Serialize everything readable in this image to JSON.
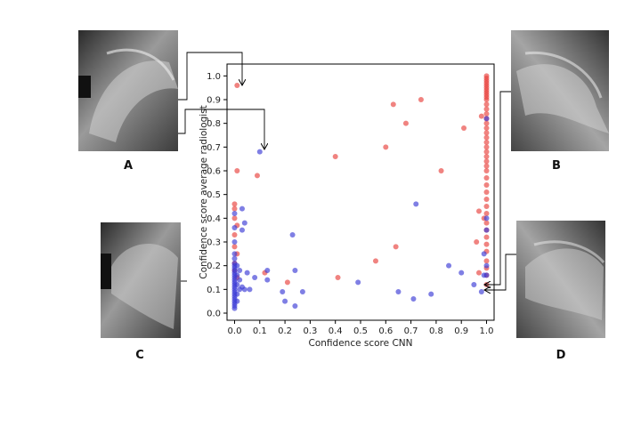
{
  "chart_data": {
    "type": "scatter",
    "xlabel": "Confidence score CNN",
    "ylabel": "Confidence score average radiologist",
    "xlim": [
      -0.03,
      1.03
    ],
    "ylim": [
      -0.03,
      1.05
    ],
    "xticks": [
      "0.0",
      "0.1",
      "0.2",
      "0.3",
      "0.4",
      "0.5",
      "0.6",
      "0.7",
      "0.8",
      "0.9",
      "1.0"
    ],
    "yticks": [
      "0.0",
      "0.1",
      "0.2",
      "0.3",
      "0.4",
      "0.5",
      "0.6",
      "0.7",
      "0.8",
      "0.9",
      "1.0"
    ],
    "grid": false,
    "legend": "none",
    "panel_labels": [
      "A",
      "B",
      "C",
      "D"
    ],
    "colors": {
      "red": "#e8413c",
      "blue": "#3a3ad6"
    },
    "series": [
      {
        "color": "red",
        "points": [
          [
            0.01,
            0.96
          ],
          [
            0.01,
            0.6
          ],
          [
            0.0,
            0.46
          ],
          [
            0.0,
            0.44
          ],
          [
            0.0,
            0.4
          ],
          [
            0.01,
            0.37
          ],
          [
            0.0,
            0.33
          ],
          [
            0.0,
            0.28
          ],
          [
            0.01,
            0.25
          ],
          [
            0.0,
            0.21
          ],
          [
            0.0,
            0.18
          ],
          [
            0.01,
            0.15
          ],
          [
            0.09,
            0.58
          ],
          [
            0.12,
            0.17
          ],
          [
            0.21,
            0.13
          ],
          [
            0.4,
            0.66
          ],
          [
            0.41,
            0.15
          ],
          [
            0.56,
            0.22
          ],
          [
            0.6,
            0.7
          ],
          [
            0.63,
            0.88
          ],
          [
            0.64,
            0.28
          ],
          [
            0.68,
            0.8
          ],
          [
            0.74,
            0.9
          ],
          [
            0.82,
            0.6
          ],
          [
            0.91,
            0.78
          ],
          [
            0.96,
            0.3
          ],
          [
            0.97,
            0.43
          ],
          [
            0.98,
            0.83
          ],
          [
            0.99,
            0.4
          ],
          [
            0.97,
            0.17
          ],
          [
            1.0,
            1.0
          ],
          [
            1.0,
            0.99
          ],
          [
            1.0,
            0.98
          ],
          [
            1.0,
            0.97
          ],
          [
            1.0,
            0.96
          ],
          [
            1.0,
            0.95
          ],
          [
            1.0,
            0.94
          ],
          [
            1.0,
            0.93
          ],
          [
            1.0,
            0.92
          ],
          [
            1.0,
            0.91
          ],
          [
            1.0,
            0.9
          ],
          [
            1.0,
            0.88
          ],
          [
            1.0,
            0.86
          ],
          [
            1.0,
            0.84
          ],
          [
            1.0,
            0.82
          ],
          [
            1.0,
            0.8
          ],
          [
            1.0,
            0.78
          ],
          [
            1.0,
            0.76
          ],
          [
            1.0,
            0.74
          ],
          [
            1.0,
            0.72
          ],
          [
            1.0,
            0.7
          ],
          [
            1.0,
            0.68
          ],
          [
            1.0,
            0.66
          ],
          [
            1.0,
            0.64
          ],
          [
            1.0,
            0.62
          ],
          [
            1.0,
            0.6
          ],
          [
            1.0,
            0.57
          ],
          [
            1.0,
            0.54
          ],
          [
            1.0,
            0.51
          ],
          [
            1.0,
            0.48
          ],
          [
            1.0,
            0.45
          ],
          [
            1.0,
            0.42
          ],
          [
            1.0,
            0.38
          ],
          [
            1.0,
            0.35
          ],
          [
            1.0,
            0.32
          ],
          [
            1.0,
            0.29
          ],
          [
            1.0,
            0.26
          ],
          [
            1.0,
            0.22
          ],
          [
            1.0,
            0.19
          ],
          [
            1.0,
            0.16
          ],
          [
            1.0,
            0.12
          ]
        ]
      },
      {
        "color": "blue",
        "points": [
          [
            0.0,
            0.02
          ],
          [
            0.0,
            0.03
          ],
          [
            0.0,
            0.04
          ],
          [
            0.0,
            0.05
          ],
          [
            0.0,
            0.06
          ],
          [
            0.0,
            0.07
          ],
          [
            0.0,
            0.08
          ],
          [
            0.0,
            0.09
          ],
          [
            0.0,
            0.1
          ],
          [
            0.0,
            0.11
          ],
          [
            0.0,
            0.12
          ],
          [
            0.0,
            0.13
          ],
          [
            0.0,
            0.14
          ],
          [
            0.0,
            0.15
          ],
          [
            0.0,
            0.16
          ],
          [
            0.0,
            0.17
          ],
          [
            0.0,
            0.18
          ],
          [
            0.0,
            0.19
          ],
          [
            0.0,
            0.2
          ],
          [
            0.0,
            0.21
          ],
          [
            0.0,
            0.23
          ],
          [
            0.0,
            0.25
          ],
          [
            0.0,
            0.3
          ],
          [
            0.0,
            0.36
          ],
          [
            0.0,
            0.42
          ],
          [
            0.01,
            0.08
          ],
          [
            0.01,
            0.12
          ],
          [
            0.01,
            0.16
          ],
          [
            0.01,
            0.2
          ],
          [
            0.01,
            0.05
          ],
          [
            0.02,
            0.1
          ],
          [
            0.02,
            0.14
          ],
          [
            0.02,
            0.18
          ],
          [
            0.03,
            0.11
          ],
          [
            0.04,
            0.1
          ],
          [
            0.05,
            0.17
          ],
          [
            0.04,
            0.38
          ],
          [
            0.03,
            0.44
          ],
          [
            0.03,
            0.35
          ],
          [
            0.06,
            0.1
          ],
          [
            0.08,
            0.15
          ],
          [
            0.1,
            0.68
          ],
          [
            0.13,
            0.18
          ],
          [
            0.13,
            0.14
          ],
          [
            0.19,
            0.09
          ],
          [
            0.2,
            0.05
          ],
          [
            0.23,
            0.33
          ],
          [
            0.24,
            0.18
          ],
          [
            0.24,
            0.03
          ],
          [
            0.27,
            0.09
          ],
          [
            0.49,
            0.13
          ],
          [
            0.65,
            0.09
          ],
          [
            0.71,
            0.06
          ],
          [
            0.72,
            0.46
          ],
          [
            0.78,
            0.08
          ],
          [
            0.85,
            0.2
          ],
          [
            0.9,
            0.17
          ],
          [
            0.95,
            0.12
          ],
          [
            0.98,
            0.09
          ],
          [
            0.99,
            0.16
          ],
          [
            0.99,
            0.25
          ],
          [
            1.0,
            0.82
          ],
          [
            1.0,
            0.16
          ],
          [
            1.0,
            0.2
          ],
          [
            1.0,
            0.35
          ],
          [
            1.0,
            0.4
          ]
        ]
      }
    ]
  }
}
